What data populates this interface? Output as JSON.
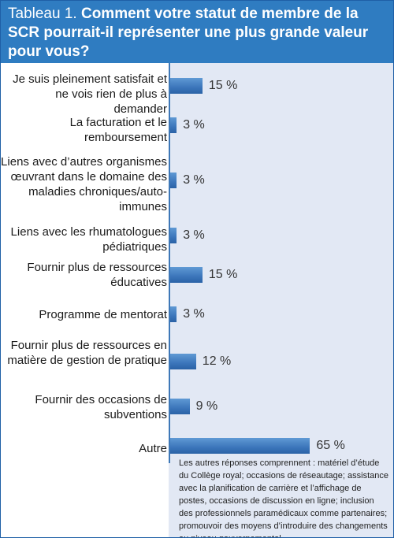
{
  "header": {
    "lead": "Tableau 1.",
    "question": "Comment votre statut de membre de la SCR pourrait-il représenter une plus grande valeur pour vous?"
  },
  "chart_data": {
    "type": "bar",
    "orientation": "horizontal",
    "categories": [
      "Je suis pleinement satisfait et ne vois rien de plus à demander",
      "La facturation et le remboursement",
      "Liens avec d’autres organismes œuvrant dans le domaine des maladies chroniques/auto-immunes",
      "Liens avec les rhumatologues pédiatriques",
      "Fournir plus de ressources éducatives",
      "Programme de mentorat",
      "Fournir plus de ressources en matière de gestion de pratique",
      "Fournir des occasions de subventions",
      "Autre"
    ],
    "values": [
      15,
      3,
      3,
      3,
      15,
      3,
      12,
      9,
      65
    ],
    "value_labels": [
      "15 %",
      "3 %",
      "3 %",
      "3 %",
      "15 %",
      "3 %",
      "12 %",
      "9 %",
      "65 %"
    ],
    "xlim": [
      0,
      100
    ],
    "grid": false,
    "bar_color": "#3e78bd",
    "plot_background": "#e2e8f4"
  },
  "footnote": "Les autres réponses comprennent : matériel d’étude du Collège royal; occasions de réseautage; assistance avec la planification de carrière et l’affichage de postes, occasions de discussion en ligne; inclusion des professionnels paramédicaux comme partenaires; promouvoir des moyens d’introduire des changements au niveau gouvernemental.",
  "colors": {
    "header_bg": "#2f7cc1",
    "header_text": "#ffffff"
  }
}
